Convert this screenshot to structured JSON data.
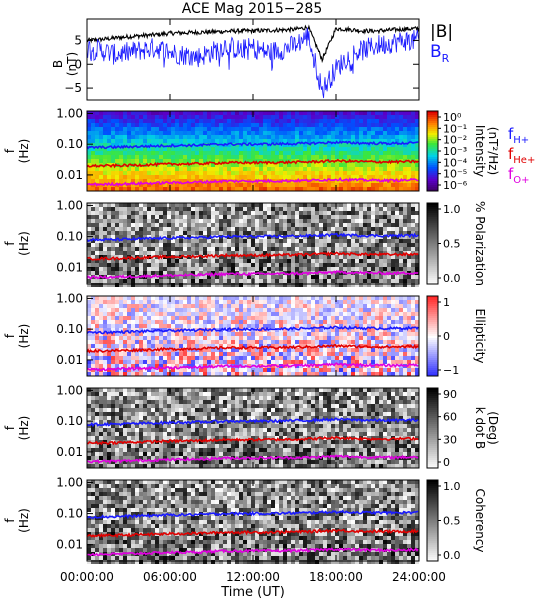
{
  "title": "ACE Mag 2015−285",
  "x_axis": {
    "label": "Time (UT)",
    "tick_labels": [
      "00:00:00",
      "06:00:00",
      "12:00:00",
      "18:00:00",
      "24:00:00"
    ],
    "tick_hours": [
      0,
      6,
      12,
      18,
      24
    ],
    "range_hours": [
      0,
      24
    ]
  },
  "top_panel": {
    "ylabel": "B (nT)",
    "ylabel_top": "B",
    "ylabel_unit": "(nT)",
    "ytick_labels": [
      "5",
      "0",
      "−5"
    ],
    "ytick_values": [
      5,
      0,
      -5
    ],
    "ylim": [
      -7.5,
      9.5
    ],
    "legend": [
      {
        "text": "|B|",
        "color": "#000000"
      },
      {
        "text": "B",
        "sub": "R",
        "color": "#1a1aff"
      }
    ]
  },
  "freq_axis": {
    "ylabel_top": "f",
    "ylabel_unit": "(Hz)",
    "tick_labels": [
      "1.00",
      "0.10",
      "0.01"
    ],
    "tick_values": [
      1.0,
      0.1,
      0.01
    ],
    "range": [
      0.003,
      1.2
    ],
    "scale": "log"
  },
  "panels": [
    {
      "id": "intensity",
      "colormap": "rainbow",
      "colorbar_label_1": "Intensity",
      "colorbar_label_2": "(nT²/Hz)",
      "colorbar_ticks": [
        "10⁰",
        "10⁻¹",
        "10⁻²",
        "10⁻³",
        "10⁻⁴",
        "10⁻⁵",
        "10⁻⁶"
      ],
      "legend": [
        {
          "text": "f",
          "sub": "H+",
          "color": "#1a1aff"
        },
        {
          "text": "f",
          "sub": "He+",
          "color": "#e00000"
        },
        {
          "text": "f",
          "sub": "O+",
          "color": "#e000e0"
        }
      ]
    },
    {
      "id": "polarization",
      "colormap": "gray",
      "colorbar_label_1": "% Polarization",
      "colorbar_label_2": "",
      "colorbar_ticks": [
        "1.0",
        "0.5",
        "0.0"
      ]
    },
    {
      "id": "ellipticity",
      "colormap": "bwr",
      "colorbar_label_1": "Ellipticity",
      "colorbar_label_2": "",
      "colorbar_ticks": [
        "1",
        "0",
        "−1"
      ]
    },
    {
      "id": "kdotb",
      "colormap": "gray",
      "colorbar_label_1": "k dot B",
      "colorbar_label_2": "(Deg)",
      "colorbar_ticks": [
        "90",
        "60",
        "30",
        "0"
      ]
    },
    {
      "id": "coherency",
      "colormap": "gray",
      "colorbar_label_1": "Coherency",
      "colorbar_label_2": "",
      "colorbar_ticks": [
        "1.0",
        "0.5",
        "0.0"
      ]
    }
  ],
  "colors": {
    "h_plus": "#1a1aff",
    "he_plus": "#e00000",
    "o_plus": "#e000e0",
    "b_total": "#000000",
    "b_r": "#1a1aff"
  },
  "chart_data": {
    "type": "line",
    "title": "ACE Mag 2015−285",
    "xlabel": "Time (UT)",
    "x_unit": "hours UT",
    "xlim": [
      0,
      24
    ],
    "magnetic_field": {
      "ylabel": "B (nT)",
      "ylim": [
        -7.5,
        9.5
      ],
      "x": [
        0,
        1,
        2,
        3,
        4,
        5,
        6,
        7,
        8,
        9,
        10,
        11,
        12,
        13,
        14,
        15,
        16,
        17,
        18,
        19,
        20,
        21,
        22,
        23,
        24
      ],
      "series": [
        {
          "name": "|B|",
          "values": [
            5.0,
            5.2,
            5.5,
            5.8,
            6.0,
            6.2,
            6.5,
            6.6,
            6.7,
            6.8,
            6.9,
            7.0,
            7.0,
            7.1,
            7.2,
            7.3,
            7.8,
            1.0,
            7.5,
            7.3,
            7.0,
            7.0,
            7.2,
            7.4,
            7.5
          ]
        },
        {
          "name": "B_R",
          "values": [
            3.5,
            3.0,
            2.0,
            2.5,
            3.0,
            3.5,
            2.5,
            2.0,
            1.5,
            2.5,
            4.0,
            3.0,
            3.5,
            2.5,
            3.0,
            4.0,
            6.0,
            -5.5,
            -1.0,
            2.0,
            3.0,
            4.0,
            4.5,
            5.0,
            5.0
          ]
        }
      ]
    },
    "ion_cyclotron_frequencies": {
      "ylabel": "f (Hz)",
      "yscale": "log",
      "x": [
        0,
        2,
        4,
        6,
        8,
        10,
        12,
        14,
        16,
        18,
        20,
        22,
        24
      ],
      "series": [
        {
          "name": "f_H+",
          "values": [
            0.078,
            0.08,
            0.085,
            0.09,
            0.093,
            0.1,
            0.1,
            0.102,
            0.106,
            0.115,
            0.108,
            0.106,
            0.11
          ]
        },
        {
          "name": "f_He+",
          "values": [
            0.0195,
            0.02,
            0.0212,
            0.0225,
            0.0232,
            0.025,
            0.025,
            0.0255,
            0.0265,
            0.0288,
            0.027,
            0.0265,
            0.0275
          ]
        },
        {
          "name": "f_O+",
          "values": [
            0.0049,
            0.005,
            0.0053,
            0.0056,
            0.0058,
            0.0063,
            0.0063,
            0.0064,
            0.0066,
            0.0072,
            0.0068,
            0.0066,
            0.0069
          ]
        }
      ]
    }
  }
}
